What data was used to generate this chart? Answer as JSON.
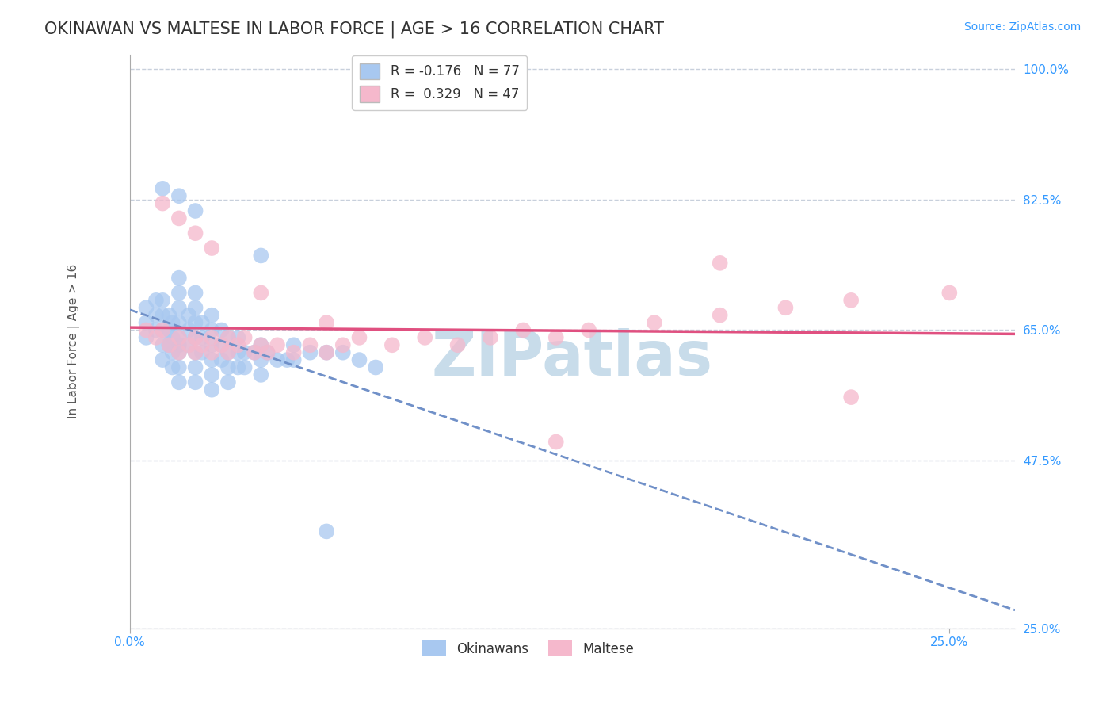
{
  "title": "OKINAWAN VS MALTESE IN LABOR FORCE | AGE > 16 CORRELATION CHART",
  "source_text": "Source: ZipAtlas.com",
  "ylabel": "In Labor Force | Age > 16",
  "xlim": [
    0.0,
    0.27
  ],
  "ylim": [
    0.25,
    1.02
  ],
  "yticks": [
    0.25,
    0.475,
    0.65,
    0.825,
    1.0
  ],
  "yticklabels": [
    "25.0%",
    "47.5%",
    "65.0%",
    "82.5%",
    "100.0%"
  ],
  "xtick_left_label": "0.0%",
  "xtick_right_label": "25.0%",
  "xtick_right_val": 0.25,
  "legend_line1": "R = -0.176   N = 77",
  "legend_line2": "R =  0.329   N = 47",
  "color_okinawan": "#a8c8f0",
  "color_maltese": "#f5b8cc",
  "color_line_okinawan": "#7090c8",
  "color_line_maltese": "#e05080",
  "watermark": "ZIPatlas",
  "watermark_color": "#c8dcea",
  "background_color": "#ffffff",
  "grid_color": "#c8d0dc",
  "okinawan_x": [
    0.005,
    0.005,
    0.005,
    0.008,
    0.008,
    0.008,
    0.01,
    0.01,
    0.01,
    0.01,
    0.01,
    0.012,
    0.012,
    0.012,
    0.013,
    0.013,
    0.013,
    0.013,
    0.015,
    0.015,
    0.015,
    0.015,
    0.015,
    0.015,
    0.015,
    0.015,
    0.015,
    0.018,
    0.018,
    0.018,
    0.02,
    0.02,
    0.02,
    0.02,
    0.02,
    0.02,
    0.02,
    0.022,
    0.022,
    0.022,
    0.025,
    0.025,
    0.025,
    0.025,
    0.025,
    0.025,
    0.028,
    0.028,
    0.028,
    0.03,
    0.03,
    0.03,
    0.03,
    0.033,
    0.033,
    0.033,
    0.035,
    0.035,
    0.038,
    0.04,
    0.04,
    0.04,
    0.042,
    0.045,
    0.048,
    0.05,
    0.05,
    0.055,
    0.06,
    0.065,
    0.07,
    0.075,
    0.01,
    0.015,
    0.02,
    0.04,
    0.06
  ],
  "okinawan_y": [
    0.66,
    0.68,
    0.64,
    0.67,
    0.65,
    0.69,
    0.65,
    0.67,
    0.63,
    0.61,
    0.69,
    0.65,
    0.67,
    0.63,
    0.64,
    0.66,
    0.62,
    0.6,
    0.66,
    0.68,
    0.64,
    0.62,
    0.7,
    0.72,
    0.6,
    0.58,
    0.63,
    0.65,
    0.67,
    0.63,
    0.64,
    0.66,
    0.68,
    0.62,
    0.6,
    0.7,
    0.58,
    0.64,
    0.66,
    0.62,
    0.63,
    0.65,
    0.61,
    0.67,
    0.59,
    0.57,
    0.63,
    0.65,
    0.61,
    0.62,
    0.64,
    0.6,
    0.58,
    0.62,
    0.64,
    0.6,
    0.62,
    0.6,
    0.62,
    0.61,
    0.63,
    0.59,
    0.62,
    0.61,
    0.61,
    0.63,
    0.61,
    0.62,
    0.62,
    0.62,
    0.61,
    0.6,
    0.84,
    0.83,
    0.81,
    0.75,
    0.38
  ],
  "maltese_x": [
    0.005,
    0.008,
    0.01,
    0.012,
    0.015,
    0.015,
    0.018,
    0.02,
    0.02,
    0.022,
    0.025,
    0.025,
    0.028,
    0.03,
    0.03,
    0.033,
    0.035,
    0.038,
    0.04,
    0.042,
    0.045,
    0.05,
    0.055,
    0.06,
    0.065,
    0.07,
    0.08,
    0.09,
    0.1,
    0.11,
    0.12,
    0.13,
    0.14,
    0.16,
    0.18,
    0.2,
    0.22,
    0.25,
    0.01,
    0.015,
    0.02,
    0.025,
    0.04,
    0.06,
    0.13,
    0.18,
    0.22
  ],
  "maltese_y": [
    0.65,
    0.64,
    0.65,
    0.63,
    0.64,
    0.62,
    0.63,
    0.64,
    0.62,
    0.63,
    0.64,
    0.62,
    0.63,
    0.62,
    0.64,
    0.63,
    0.64,
    0.62,
    0.63,
    0.62,
    0.63,
    0.62,
    0.63,
    0.62,
    0.63,
    0.64,
    0.63,
    0.64,
    0.63,
    0.64,
    0.65,
    0.64,
    0.65,
    0.66,
    0.67,
    0.68,
    0.69,
    0.7,
    0.82,
    0.8,
    0.78,
    0.76,
    0.7,
    0.66,
    0.5,
    0.74,
    0.56
  ],
  "title_fontsize": 15,
  "tick_fontsize": 11,
  "legend_fontsize": 12,
  "source_fontsize": 10
}
